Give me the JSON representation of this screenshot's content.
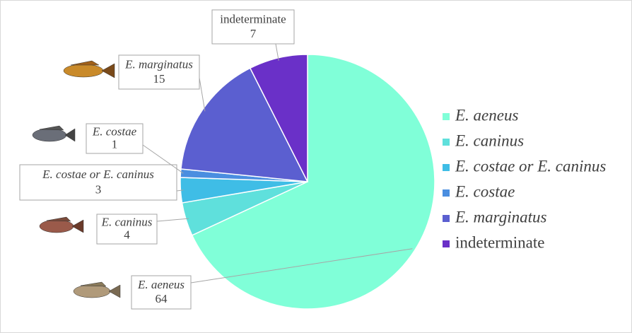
{
  "chart_data": {
    "type": "pie",
    "categories": [
      "E. aeneus",
      "E. caninus",
      "E. costae or E. caninus",
      "E. costae",
      "E. marginatus",
      "indeterminate"
    ],
    "values": [
      64,
      4,
      3,
      1,
      15,
      7
    ],
    "colors": [
      "#80ffd8",
      "#5fe0dc",
      "#3fbde6",
      "#4a8ee0",
      "#5b5fd0",
      "#6a30c8"
    ],
    "legend": "right"
  }
}
